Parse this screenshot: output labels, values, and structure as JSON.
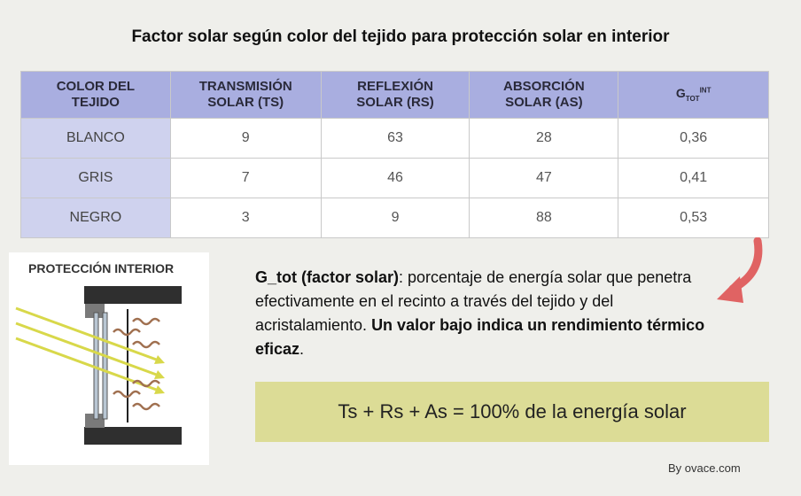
{
  "title": "Factor solar según color del tejido para protección solar en interior",
  "table": {
    "headers": {
      "color": [
        "COLOR DEL",
        "TEJIDO"
      ],
      "ts": [
        "TRANSMISIÓN",
        "SOLAR (TS)"
      ],
      "rs": [
        "REFLEXIÓN",
        "SOLAR (RS)"
      ],
      "as": [
        "ABSORCIÓN",
        "SOLAR (AS)"
      ],
      "g": {
        "base": "G",
        "sub": "TOT",
        "sup": "INT"
      }
    },
    "rows": [
      {
        "color": "BLANCO",
        "ts": "9",
        "rs": "63",
        "as": "28",
        "g": "0,36"
      },
      {
        "color": "GRIS",
        "ts": "7",
        "rs": "46",
        "as": "47",
        "g": "0,41"
      },
      {
        "color": "NEGRO",
        "ts": "3",
        "rs": "9",
        "as": "88",
        "g": "0,53"
      }
    ]
  },
  "diagram": {
    "title": "PROTECCIÓN INTERIOR",
    "colors": {
      "wall": "#2f2f2f",
      "rays": "#d8d84a",
      "heat": "#a07050",
      "glass": "#b9c6d3"
    }
  },
  "description": {
    "term": "G_tot (factor solar)",
    "text1": ": porcentaje de energía solar que penetra efectivamente en el recinto a través del tejido y del acristalamiento. ",
    "bold2": "Un valor bajo indica un rendimiento térmico eficaz",
    "text2": "."
  },
  "formula": "Ts + Rs + As = 100% de la energía solar",
  "credit": "By ovace.com",
  "colors": {
    "header_bg": "#a9aee0",
    "label_bg": "#cfd2ee",
    "formula_bg": "#dcdc96",
    "arrow": "#e06363",
    "background": "#efefeb"
  }
}
